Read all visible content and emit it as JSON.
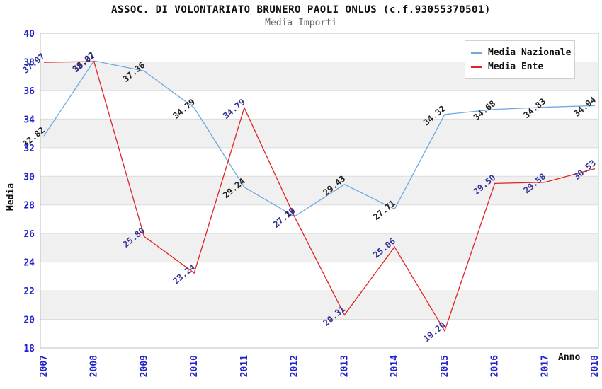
{
  "header": {
    "title": "ASSOC. DI VOLONTARIATO BRUNERO PAOLI ONLUS (c.f.93055370501)",
    "subtitle": "Media Importi"
  },
  "chart_data": {
    "type": "line",
    "title": "ASSOC. DI VOLONTARIATO BRUNERO PAOLI ONLUS (c.f.93055370501)",
    "subtitle": "Media Importi",
    "xlabel": "Anno",
    "ylabel": "Media",
    "categories": [
      "2007",
      "2008",
      "2009",
      "2010",
      "2011",
      "2012",
      "2013",
      "2014",
      "2015",
      "2016",
      "2017",
      "2018"
    ],
    "series": [
      {
        "name": "Media Nazionale",
        "color": "#6FA8E0",
        "label_color": "#222222",
        "values": [
          32.82,
          38.07,
          37.36,
          34.79,
          29.24,
          27.19,
          29.43,
          27.71,
          34.32,
          34.68,
          34.83,
          34.94
        ]
      },
      {
        "name": "Media Ente",
        "color": "#E32222",
        "label_color": "#333399",
        "values": [
          37.97,
          38.02,
          25.8,
          23.24,
          34.79,
          27.2,
          20.31,
          25.06,
          19.2,
          29.5,
          29.58,
          30.53
        ]
      }
    ],
    "ylim": [
      18,
      40
    ],
    "y_tick_step": 2,
    "tick_color": "#2222CC",
    "band_color": "#F0F0F0",
    "grid_color": "#DCDCDC",
    "border_color": "#BFBFBF",
    "legend_position": "top-right",
    "grid": "horizontal-bands"
  }
}
